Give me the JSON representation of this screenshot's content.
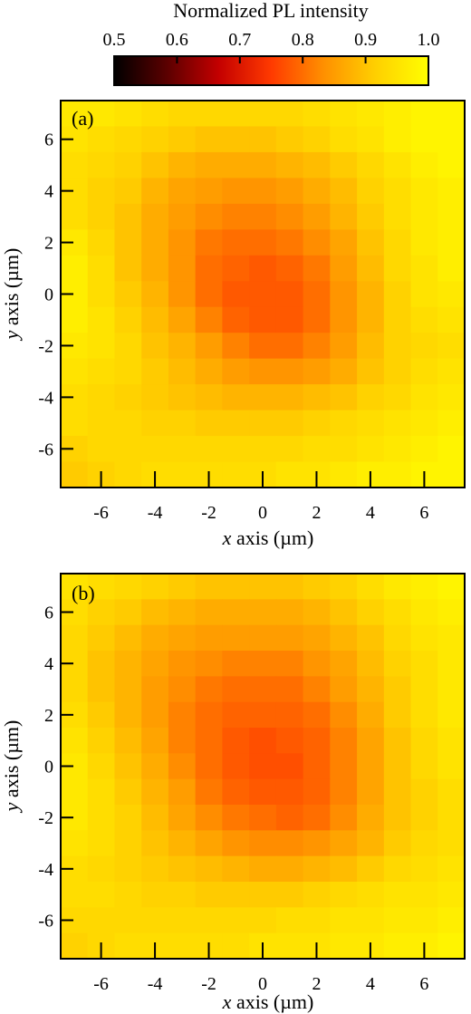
{
  "colorbar": {
    "label": "Normalized PL intensity",
    "ticks": [
      "0.5",
      "0.6",
      "0.7",
      "0.8",
      "0.9",
      "1.0"
    ],
    "tick_values": [
      0.5,
      0.6,
      0.7,
      0.8,
      0.9,
      1.0
    ],
    "range": [
      0.5,
      1.0
    ],
    "colors": [
      "#000000",
      "#5a0000",
      "#c40000",
      "#ff3a00",
      "#ff9000",
      "#ffd000",
      "#ffff00"
    ]
  },
  "chart_data": [
    {
      "type": "heatmap",
      "panel_label": "(a)",
      "xlabel": {
        "var": "x",
        "rest": " axis (µm)"
      },
      "ylabel": {
        "var": "y",
        "rest": " axis (µm)"
      },
      "xlim": [
        -7.5,
        7.5
      ],
      "ylim": [
        -7.5,
        7.5
      ],
      "xticks": [
        -6,
        -4,
        -2,
        0,
        2,
        4,
        6
      ],
      "yticks": [
        -6,
        -4,
        -2,
        0,
        2,
        4,
        6
      ],
      "x": [
        -7,
        -6,
        -5,
        -4,
        -3,
        -2,
        -1,
        0,
        1,
        2,
        3,
        4,
        5,
        6,
        7
      ],
      "y": [
        7,
        6,
        5,
        4,
        3,
        2,
        1,
        0,
        -1,
        -2,
        -3,
        -4,
        -5,
        -6,
        -7
      ],
      "z": [
        [
          0.96,
          0.96,
          0.95,
          0.94,
          0.93,
          0.93,
          0.93,
          0.93,
          0.93,
          0.94,
          0.95,
          0.96,
          0.97,
          0.98,
          0.98
        ],
        [
          0.95,
          0.94,
          0.93,
          0.92,
          0.91,
          0.9,
          0.9,
          0.9,
          0.91,
          0.92,
          0.94,
          0.95,
          0.97,
          0.98,
          0.98
        ],
        [
          0.94,
          0.93,
          0.92,
          0.9,
          0.88,
          0.87,
          0.87,
          0.87,
          0.88,
          0.89,
          0.91,
          0.93,
          0.95,
          0.97,
          0.98
        ],
        [
          0.94,
          0.92,
          0.91,
          0.88,
          0.86,
          0.85,
          0.84,
          0.84,
          0.85,
          0.87,
          0.89,
          0.92,
          0.94,
          0.96,
          0.97
        ],
        [
          0.94,
          0.92,
          0.9,
          0.87,
          0.85,
          0.83,
          0.82,
          0.82,
          0.83,
          0.85,
          0.88,
          0.91,
          0.94,
          0.96,
          0.97
        ],
        [
          0.96,
          0.93,
          0.9,
          0.87,
          0.84,
          0.81,
          0.8,
          0.8,
          0.81,
          0.83,
          0.86,
          0.9,
          0.93,
          0.96,
          0.97
        ],
        [
          0.97,
          0.94,
          0.9,
          0.87,
          0.84,
          0.8,
          0.79,
          0.78,
          0.79,
          0.81,
          0.85,
          0.89,
          0.93,
          0.95,
          0.97
        ],
        [
          0.97,
          0.94,
          0.91,
          0.88,
          0.84,
          0.8,
          0.78,
          0.78,
          0.78,
          0.8,
          0.84,
          0.88,
          0.92,
          0.95,
          0.96
        ],
        [
          0.97,
          0.95,
          0.92,
          0.89,
          0.86,
          0.82,
          0.79,
          0.78,
          0.78,
          0.8,
          0.84,
          0.88,
          0.92,
          0.94,
          0.95
        ],
        [
          0.96,
          0.95,
          0.93,
          0.9,
          0.88,
          0.85,
          0.82,
          0.8,
          0.8,
          0.82,
          0.85,
          0.89,
          0.92,
          0.93,
          0.94
        ],
        [
          0.95,
          0.94,
          0.93,
          0.91,
          0.89,
          0.87,
          0.85,
          0.84,
          0.84,
          0.85,
          0.87,
          0.9,
          0.92,
          0.94,
          0.95
        ],
        [
          0.94,
          0.93,
          0.92,
          0.91,
          0.9,
          0.89,
          0.88,
          0.88,
          0.88,
          0.89,
          0.9,
          0.92,
          0.93,
          0.95,
          0.96
        ],
        [
          0.94,
          0.93,
          0.93,
          0.92,
          0.92,
          0.91,
          0.91,
          0.91,
          0.91,
          0.92,
          0.93,
          0.94,
          0.95,
          0.96,
          0.97
        ],
        [
          0.92,
          0.93,
          0.93,
          0.93,
          0.93,
          0.93,
          0.93,
          0.93,
          0.93,
          0.94,
          0.94,
          0.95,
          0.96,
          0.97,
          0.98
        ],
        [
          0.91,
          0.92,
          0.93,
          0.94,
          0.94,
          0.94,
          0.94,
          0.94,
          0.95,
          0.95,
          0.96,
          0.97,
          0.97,
          0.98,
          0.98
        ]
      ]
    },
    {
      "type": "heatmap",
      "panel_label": "(b)",
      "xlabel": {
        "var": "x",
        "rest": " axis (µm)"
      },
      "ylabel": {
        "var": "y",
        "rest": " axis (µm)"
      },
      "xlim": [
        -7.5,
        7.5
      ],
      "ylim": [
        -7.5,
        7.5
      ],
      "xticks": [
        -6,
        -4,
        -2,
        0,
        2,
        4,
        6
      ],
      "yticks": [
        -6,
        -4,
        -2,
        0,
        2,
        4,
        6
      ],
      "x": [
        -7,
        -6,
        -5,
        -4,
        -3,
        -2,
        -1,
        0,
        1,
        2,
        3,
        4,
        5,
        6,
        7
      ],
      "y": [
        7,
        6,
        5,
        4,
        3,
        2,
        1,
        0,
        -1,
        -2,
        -3,
        -4,
        -5,
        -6,
        -7
      ],
      "z": [
        [
          0.95,
          0.94,
          0.93,
          0.92,
          0.91,
          0.9,
          0.9,
          0.9,
          0.9,
          0.91,
          0.92,
          0.94,
          0.96,
          0.97,
          0.98
        ],
        [
          0.94,
          0.92,
          0.91,
          0.89,
          0.88,
          0.87,
          0.87,
          0.87,
          0.87,
          0.88,
          0.9,
          0.92,
          0.94,
          0.96,
          0.97
        ],
        [
          0.93,
          0.91,
          0.89,
          0.87,
          0.86,
          0.85,
          0.85,
          0.85,
          0.85,
          0.86,
          0.88,
          0.9,
          0.93,
          0.95,
          0.96
        ],
        [
          0.93,
          0.9,
          0.88,
          0.86,
          0.84,
          0.83,
          0.82,
          0.82,
          0.82,
          0.84,
          0.86,
          0.89,
          0.92,
          0.94,
          0.96
        ],
        [
          0.93,
          0.9,
          0.88,
          0.85,
          0.83,
          0.81,
          0.8,
          0.8,
          0.8,
          0.82,
          0.85,
          0.88,
          0.91,
          0.94,
          0.96
        ],
        [
          0.94,
          0.91,
          0.88,
          0.85,
          0.82,
          0.8,
          0.79,
          0.79,
          0.79,
          0.8,
          0.83,
          0.87,
          0.91,
          0.94,
          0.96
        ],
        [
          0.95,
          0.92,
          0.89,
          0.86,
          0.82,
          0.8,
          0.78,
          0.77,
          0.78,
          0.79,
          0.82,
          0.86,
          0.9,
          0.93,
          0.95
        ],
        [
          0.96,
          0.93,
          0.9,
          0.87,
          0.83,
          0.8,
          0.78,
          0.77,
          0.77,
          0.79,
          0.82,
          0.86,
          0.9,
          0.93,
          0.95
        ],
        [
          0.96,
          0.94,
          0.91,
          0.88,
          0.85,
          0.81,
          0.79,
          0.78,
          0.78,
          0.79,
          0.82,
          0.86,
          0.9,
          0.92,
          0.94
        ],
        [
          0.96,
          0.94,
          0.92,
          0.89,
          0.86,
          0.83,
          0.81,
          0.8,
          0.79,
          0.8,
          0.83,
          0.87,
          0.9,
          0.92,
          0.94
        ],
        [
          0.95,
          0.94,
          0.92,
          0.9,
          0.88,
          0.86,
          0.84,
          0.83,
          0.83,
          0.84,
          0.86,
          0.88,
          0.91,
          0.93,
          0.94
        ],
        [
          0.94,
          0.93,
          0.92,
          0.91,
          0.9,
          0.89,
          0.88,
          0.87,
          0.87,
          0.88,
          0.89,
          0.91,
          0.93,
          0.94,
          0.95
        ],
        [
          0.94,
          0.94,
          0.93,
          0.92,
          0.92,
          0.91,
          0.91,
          0.91,
          0.91,
          0.92,
          0.93,
          0.94,
          0.95,
          0.95,
          0.96
        ],
        [
          0.93,
          0.93,
          0.93,
          0.93,
          0.93,
          0.93,
          0.93,
          0.93,
          0.94,
          0.94,
          0.95,
          0.95,
          0.96,
          0.96,
          0.97
        ],
        [
          0.92,
          0.93,
          0.94,
          0.94,
          0.94,
          0.94,
          0.94,
          0.95,
          0.95,
          0.95,
          0.96,
          0.96,
          0.97,
          0.97,
          0.98
        ]
      ]
    }
  ]
}
